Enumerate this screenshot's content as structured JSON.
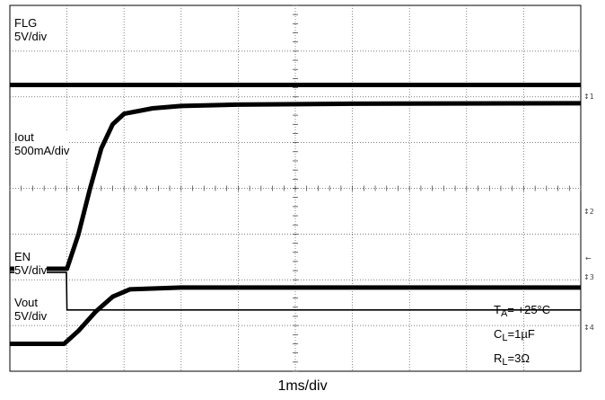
{
  "chart_data": {
    "type": "line",
    "title": "",
    "x_scale_label": "1ms/div",
    "grid": {
      "divisions_x": 10,
      "divisions_y": 8,
      "visible": true
    },
    "channels": [
      {
        "name": "FLG",
        "scale": "5V/div",
        "marker": "1"
      },
      {
        "name": "Iout",
        "scale": "500mA/div",
        "marker": "2"
      },
      {
        "name": "EN",
        "scale": "5V/div",
        "marker": "3"
      },
      {
        "name": "Vout",
        "scale": "5V/div",
        "marker": "4"
      }
    ],
    "traces_div": {
      "FLG": {
        "x": [
          0,
          10
        ],
        "y": [
          6.26,
          6.26
        ]
      },
      "Iout": {
        "x": [
          0,
          1,
          1.2,
          1.4,
          1.6,
          1.8,
          2.0,
          2.5,
          3.0,
          4.0,
          6.0,
          10.0
        ],
        "y": [
          2.24,
          2.24,
          2.99,
          3.97,
          4.87,
          5.4,
          5.63,
          5.75,
          5.8,
          5.83,
          5.85,
          5.86
        ]
      },
      "EN": {
        "x": [
          0,
          0.99,
          1.0,
          10.0
        ],
        "y": [
          2.16,
          2.16,
          1.34,
          1.34
        ]
      },
      "Vout": {
        "x": [
          0,
          0.95,
          1.2,
          1.5,
          1.8,
          2.1,
          3.0,
          10.0
        ],
        "y": [
          0.6,
          0.6,
          0.88,
          1.3,
          1.63,
          1.79,
          1.83,
          1.83
        ]
      }
    },
    "annotations": {
      "ta": {
        "main": "T",
        "sub": "A",
        "rest": "= +25°C"
      },
      "cl": {
        "main": "C",
        "sub": "L",
        "rest": "=1µF"
      },
      "rl": {
        "main": "R",
        "sub": "L",
        "rest": "=3Ω"
      }
    }
  }
}
